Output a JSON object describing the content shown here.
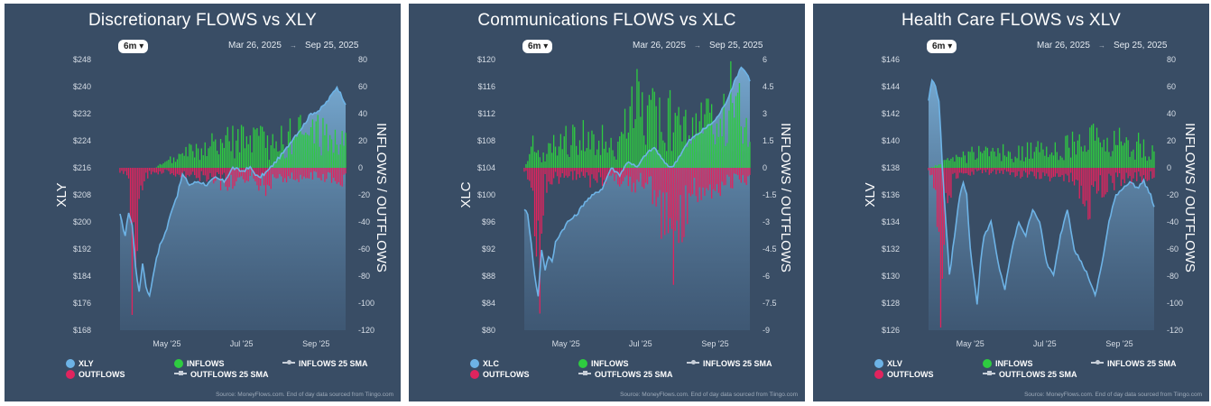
{
  "panels": [
    {
      "title": "Discretionary FLOWS vs XLY",
      "range_button": "6m",
      "date_start": "Mar 26, 2025",
      "date_arrow": "→",
      "date_end": "Sep 25, 2025",
      "legend": {
        "price": "XLY",
        "inflows": "INFLOWS",
        "sma_in": "INFLOWS 25 SMA",
        "outflows": "OUTFLOWS",
        "sma_out": "OUTFLOWS 25 SMA"
      },
      "source": "Source: MoneyFlows.com. End of day data sourced from Tiingo.com"
    },
    {
      "title": "Communications FLOWS vs XLC",
      "range_button": "6m",
      "date_start": "Mar 26, 2025",
      "date_arrow": "→",
      "date_end": "Sep 25, 2025",
      "legend": {
        "price": "XLC",
        "inflows": "INFLOWS",
        "sma_in": "INFLOWS 25 SMA",
        "outflows": "OUTFLOWS",
        "sma_out": "OUTFLOWS 25 SMA"
      },
      "source": "Source: MoneyFlows.com. End of day data sourced from Tiingo.com"
    },
    {
      "title": "Health Care FLOWS vs XLV",
      "range_button": "6m",
      "date_start": "Mar 26, 2025",
      "date_arrow": "→",
      "date_end": "Sep 25, 2025",
      "legend": {
        "price": "XLV",
        "inflows": "INFLOWS",
        "sma_in": "INFLOWS 25 SMA",
        "outflows": "OUTFLOWS",
        "sma_out": "OUTFLOWS 25 SMA"
      },
      "source": "Source: MoneyFlows.com. End of day data sourced from Tiingo.com"
    }
  ],
  "colors": {
    "background": "#394d65",
    "price_line": "#6db3e6",
    "inflow": "#2ecc40",
    "outflow": "#e0245e"
  },
  "chart_data": [
    {
      "type": "area+bar",
      "title": "Discretionary FLOWS vs XLY",
      "xlabel": "",
      "ylabel": "XLY",
      "y2label": "INFLOWS / OUTFLOWS",
      "x_tick_labels": [
        "May '25",
        "Jul '25",
        "Sep '25"
      ],
      "x_tick_index": [
        27,
        70,
        113
      ],
      "y_ticks": [
        "$248",
        "$240",
        "$232",
        "$224",
        "$216",
        "$208",
        "$200",
        "$192",
        "$184",
        "$176",
        "$168"
      ],
      "ylim": [
        168,
        248
      ],
      "y2_ticks": [
        "80",
        "60",
        "40",
        "20",
        "0",
        "-20",
        "-40",
        "-60",
        "-80",
        "-100",
        "-120"
      ],
      "y2lim": [
        -120,
        80
      ],
      "price_anchors": [
        [
          0,
          202
        ],
        [
          3,
          196
        ],
        [
          5,
          203
        ],
        [
          7,
          199
        ],
        [
          9,
          187
        ],
        [
          11,
          179
        ],
        [
          13,
          188
        ],
        [
          15,
          181
        ],
        [
          17,
          178
        ],
        [
          20,
          187
        ],
        [
          23,
          193
        ],
        [
          27,
          198
        ],
        [
          30,
          204
        ],
        [
          33,
          208
        ],
        [
          36,
          214
        ],
        [
          40,
          211
        ],
        [
          45,
          212
        ],
        [
          50,
          211
        ],
        [
          55,
          213
        ],
        [
          60,
          212
        ],
        [
          65,
          216
        ],
        [
          70,
          215
        ],
        [
          75,
          216
        ],
        [
          80,
          213
        ],
        [
          85,
          215
        ],
        [
          90,
          218
        ],
        [
          95,
          221
        ],
        [
          100,
          225
        ],
        [
          105,
          228
        ],
        [
          110,
          232
        ],
        [
          115,
          233
        ],
        [
          120,
          236
        ],
        [
          125,
          240
        ],
        [
          128,
          237
        ],
        [
          130,
          235
        ]
      ],
      "inflow_anchors": [
        [
          0,
          0
        ],
        [
          20,
          0
        ],
        [
          25,
          4
        ],
        [
          30,
          6
        ],
        [
          35,
          8
        ],
        [
          40,
          14
        ],
        [
          45,
          12
        ],
        [
          50,
          16
        ],
        [
          55,
          18
        ],
        [
          60,
          20
        ],
        [
          65,
          22
        ],
        [
          70,
          24
        ],
        [
          75,
          20
        ],
        [
          80,
          22
        ],
        [
          85,
          18
        ],
        [
          90,
          20
        ],
        [
          95,
          22
        ],
        [
          100,
          26
        ],
        [
          105,
          28
        ],
        [
          110,
          26
        ],
        [
          115,
          30
        ],
        [
          120,
          24
        ],
        [
          125,
          22
        ],
        [
          130,
          20
        ]
      ],
      "outflow_anchors": [
        [
          0,
          -3
        ],
        [
          4,
          -4
        ],
        [
          5,
          -20
        ],
        [
          6,
          -55
        ],
        [
          7,
          -85
        ],
        [
          8,
          -95
        ],
        [
          9,
          -110
        ],
        [
          10,
          -80
        ],
        [
          11,
          -40
        ],
        [
          12,
          -15
        ],
        [
          14,
          -8
        ],
        [
          18,
          -4
        ],
        [
          25,
          -3
        ],
        [
          30,
          -4
        ],
        [
          40,
          -6
        ],
        [
          50,
          -8
        ],
        [
          60,
          -12
        ],
        [
          70,
          -10
        ],
        [
          75,
          -8
        ],
        [
          80,
          -12
        ],
        [
          85,
          -16
        ],
        [
          90,
          -10
        ],
        [
          100,
          -8
        ],
        [
          110,
          -6
        ],
        [
          120,
          -8
        ],
        [
          130,
          -10
        ]
      ]
    },
    {
      "type": "area+bar",
      "title": "Communications FLOWS vs XLC",
      "xlabel": "",
      "ylabel": "XLC",
      "y2label": "INFLOWS / OUTFLOWS",
      "x_tick_labels": [
        "May '25",
        "Jul '25",
        "Sep '25"
      ],
      "x_tick_index": [
        24,
        67,
        110
      ],
      "y_ticks": [
        "$120",
        "$116",
        "$112",
        "$108",
        "$104",
        "$100",
        "$96",
        "$92",
        "$88",
        "$84",
        "$80"
      ],
      "ylim": [
        80,
        120
      ],
      "y2_ticks": [
        "6",
        "4.5",
        "3",
        "1.5",
        "0",
        "-1.5",
        "-3",
        "-4.5",
        "-6",
        "-7.5",
        "-9"
      ],
      "y2lim": [
        -9,
        6
      ],
      "price_anchors": [
        [
          0,
          98
        ],
        [
          2,
          97
        ],
        [
          4,
          93
        ],
        [
          6,
          88
        ],
        [
          8,
          85
        ],
        [
          10,
          92
        ],
        [
          12,
          89
        ],
        [
          14,
          91
        ],
        [
          16,
          90
        ],
        [
          18,
          93
        ],
        [
          20,
          94
        ],
        [
          25,
          96
        ],
        [
          30,
          97
        ],
        [
          35,
          99
        ],
        [
          40,
          100
        ],
        [
          45,
          101
        ],
        [
          50,
          104
        ],
        [
          55,
          103
        ],
        [
          60,
          105
        ],
        [
          65,
          104
        ],
        [
          70,
          106
        ],
        [
          75,
          107
        ],
        [
          80,
          105
        ],
        [
          85,
          104
        ],
        [
          90,
          106
        ],
        [
          95,
          108
        ],
        [
          100,
          109
        ],
        [
          105,
          110
        ],
        [
          110,
          111
        ],
        [
          115,
          113
        ],
        [
          120,
          116
        ],
        [
          125,
          119
        ],
        [
          128,
          118
        ],
        [
          130,
          117
        ]
      ],
      "inflow_anchors": [
        [
          0,
          0
        ],
        [
          4,
          1.3
        ],
        [
          6,
          1.3
        ],
        [
          10,
          0.5
        ],
        [
          15,
          1.2
        ],
        [
          20,
          1.5
        ],
        [
          25,
          1.6
        ],
        [
          30,
          1.7
        ],
        [
          35,
          2.0
        ],
        [
          40,
          1.5
        ],
        [
          45,
          1.6
        ],
        [
          50,
          1.4
        ],
        [
          55,
          1.3
        ],
        [
          60,
          3.0
        ],
        [
          65,
          4.0
        ],
        [
          70,
          3.5
        ],
        [
          75,
          3.0
        ],
        [
          80,
          2.5
        ],
        [
          85,
          3.0
        ],
        [
          90,
          2.5
        ],
        [
          95,
          2.0
        ],
        [
          100,
          2.5
        ],
        [
          105,
          3.0
        ],
        [
          110,
          2.0
        ],
        [
          115,
          3.0
        ],
        [
          120,
          4.5
        ],
        [
          125,
          3.5
        ],
        [
          130,
          3.0
        ]
      ],
      "outflow_anchors": [
        [
          0,
          -0.2
        ],
        [
          4,
          -1.0
        ],
        [
          6,
          -3.0
        ],
        [
          8,
          -5.0
        ],
        [
          9,
          -6.0
        ],
        [
          10,
          -3.0
        ],
        [
          12,
          -1.0
        ],
        [
          20,
          -0.6
        ],
        [
          30,
          -0.5
        ],
        [
          40,
          -0.8
        ],
        [
          50,
          -0.6
        ],
        [
          60,
          -1.0
        ],
        [
          70,
          -0.8
        ],
        [
          75,
          -1.5
        ],
        [
          80,
          -3.0
        ],
        [
          85,
          -4.5
        ],
        [
          88,
          -5.0
        ],
        [
          90,
          -3.0
        ],
        [
          95,
          -2.0
        ],
        [
          100,
          -1.5
        ],
        [
          110,
          -1.2
        ],
        [
          120,
          -0.8
        ],
        [
          130,
          -0.6
        ]
      ]
    },
    {
      "type": "area+bar",
      "title": "Health Care FLOWS vs XLV",
      "xlabel": "",
      "ylabel": "XLV",
      "y2label": "INFLOWS / OUTFLOWS",
      "x_tick_labels": [
        "May '25",
        "Jul '25",
        "Sep '25"
      ],
      "x_tick_index": [
        24,
        67,
        110
      ],
      "y_ticks": [
        "$146",
        "$144",
        "$142",
        "$140",
        "$138",
        "$136",
        "$134",
        "$132",
        "$130",
        "$128",
        "$126"
      ],
      "ylim": [
        126,
        146
      ],
      "y2_ticks": [
        "80",
        "60",
        "40",
        "20",
        "0",
        "-20",
        "-40",
        "-60",
        "-80",
        "-100",
        "-120"
      ],
      "y2lim": [
        -120,
        80
      ],
      "price_anchors": [
        [
          0,
          143
        ],
        [
          2,
          144.5
        ],
        [
          4,
          144
        ],
        [
          6,
          143
        ],
        [
          8,
          138
        ],
        [
          10,
          134
        ],
        [
          12,
          130
        ],
        [
          14,
          132
        ],
        [
          16,
          134
        ],
        [
          18,
          136
        ],
        [
          20,
          137
        ],
        [
          22,
          136
        ],
        [
          24,
          132
        ],
        [
          26,
          130
        ],
        [
          28,
          128
        ],
        [
          30,
          131
        ],
        [
          32,
          133
        ],
        [
          36,
          134
        ],
        [
          40,
          131
        ],
        [
          44,
          129
        ],
        [
          48,
          132
        ],
        [
          52,
          134
        ],
        [
          56,
          133
        ],
        [
          60,
          135
        ],
        [
          64,
          134
        ],
        [
          68,
          131
        ],
        [
          72,
          130
        ],
        [
          76,
          133
        ],
        [
          80,
          135
        ],
        [
          84,
          132
        ],
        [
          88,
          131
        ],
        [
          92,
          130
        ],
        [
          96,
          128.5
        ],
        [
          100,
          131
        ],
        [
          104,
          134
        ],
        [
          108,
          136
        ],
        [
          112,
          136.5
        ],
        [
          116,
          137
        ],
        [
          120,
          136.5
        ],
        [
          124,
          137
        ],
        [
          128,
          136
        ],
        [
          130,
          135
        ]
      ],
      "inflow_anchors": [
        [
          0,
          0
        ],
        [
          6,
          2
        ],
        [
          10,
          6
        ],
        [
          15,
          8
        ],
        [
          20,
          10
        ],
        [
          25,
          12
        ],
        [
          30,
          14
        ],
        [
          35,
          10
        ],
        [
          40,
          12
        ],
        [
          45,
          14
        ],
        [
          50,
          13
        ],
        [
          55,
          15
        ],
        [
          60,
          12
        ],
        [
          65,
          14
        ],
        [
          70,
          16
        ],
        [
          75,
          14
        ],
        [
          80,
          18
        ],
        [
          85,
          20
        ],
        [
          90,
          18
        ],
        [
          95,
          22
        ],
        [
          100,
          20
        ],
        [
          105,
          18
        ],
        [
          110,
          22
        ],
        [
          115,
          20
        ],
        [
          120,
          18
        ],
        [
          125,
          16
        ],
        [
          130,
          14
        ]
      ],
      "outflow_anchors": [
        [
          0,
          -2
        ],
        [
          2,
          -6
        ],
        [
          4,
          -20
        ],
        [
          5,
          -50
        ],
        [
          6,
          -80
        ],
        [
          7,
          -100
        ],
        [
          8,
          -110
        ],
        [
          9,
          -70
        ],
        [
          10,
          -40
        ],
        [
          12,
          -20
        ],
        [
          14,
          -10
        ],
        [
          18,
          -6
        ],
        [
          25,
          -4
        ],
        [
          30,
          -3
        ],
        [
          40,
          -4
        ],
        [
          50,
          -5
        ],
        [
          60,
          -6
        ],
        [
          70,
          -7
        ],
        [
          80,
          -8
        ],
        [
          85,
          -12
        ],
        [
          90,
          -20
        ],
        [
          92,
          -30
        ],
        [
          95,
          -25
        ],
        [
          100,
          -15
        ],
        [
          110,
          -10
        ],
        [
          120,
          -8
        ],
        [
          130,
          -8
        ]
      ]
    }
  ]
}
